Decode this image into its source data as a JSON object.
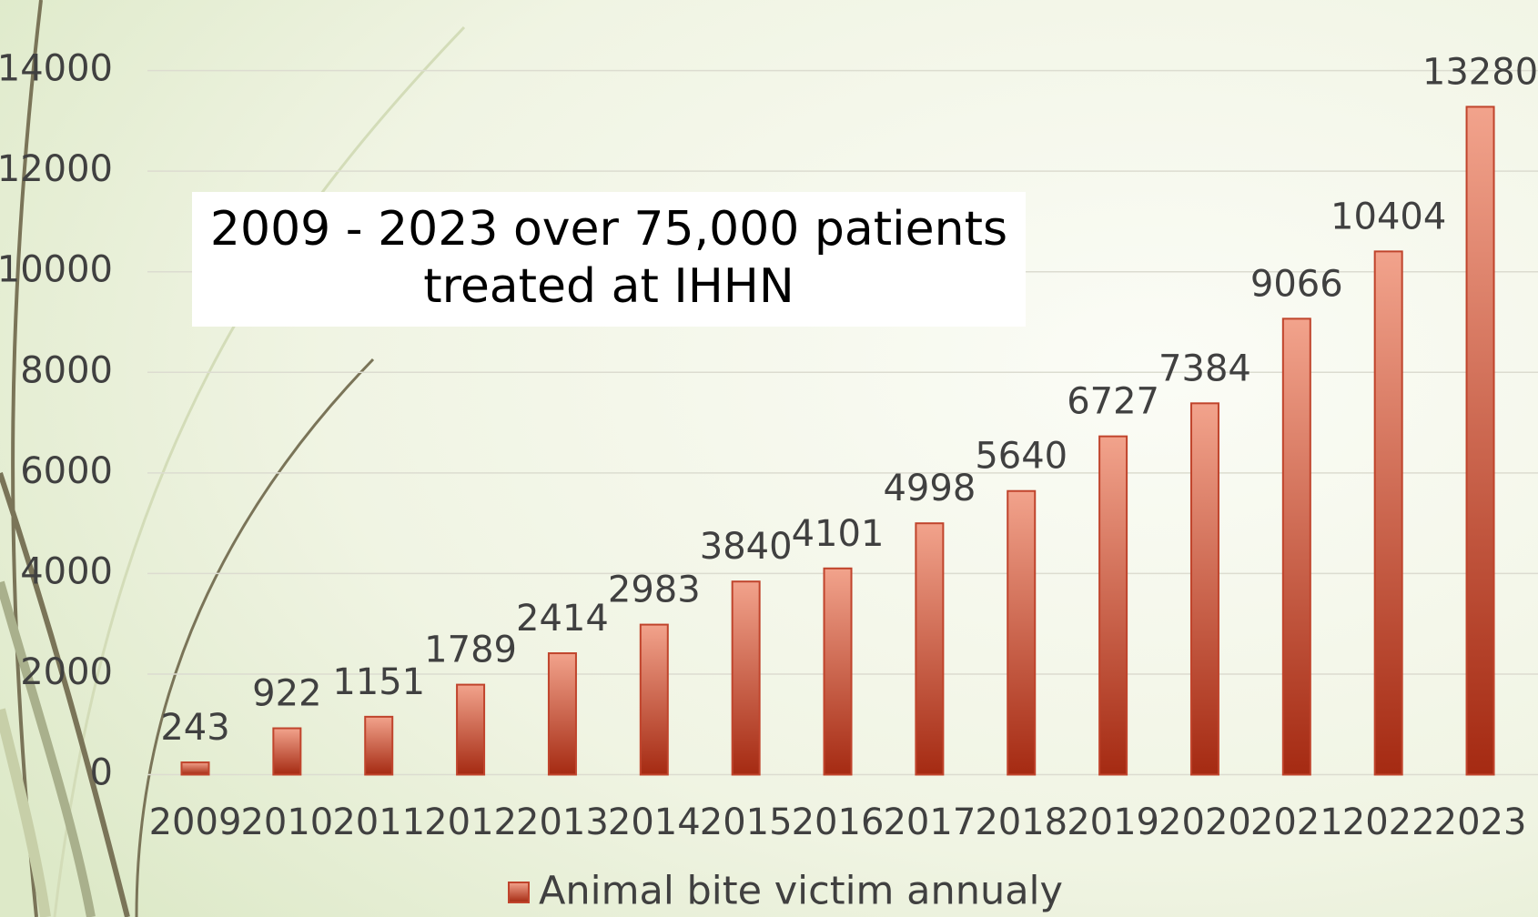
{
  "chart_data": {
    "type": "bar",
    "annotation": [
      "2009 - 2023 over 75,000 patients",
      "treated at IHHN"
    ],
    "categories": [
      "2009",
      "2010",
      "2011",
      "2012",
      "2013",
      "2014",
      "2015",
      "2016",
      "2017",
      "2018",
      "2019",
      "2020",
      "2021",
      "2022",
      "2023"
    ],
    "series": [
      {
        "name": "Animal bite victim annualy",
        "color": "#c0442c",
        "values": [
          243,
          922,
          1151,
          1789,
          2414,
          2983,
          3840,
          4101,
          4998,
          5640,
          6727,
          7384,
          9066,
          10404,
          13280
        ]
      }
    ],
    "ylim": [
      0,
      14000
    ],
    "yticks": [
      0,
      2000,
      4000,
      6000,
      8000,
      10000,
      12000,
      14000
    ],
    "grid": true,
    "legend": "bottom"
  }
}
